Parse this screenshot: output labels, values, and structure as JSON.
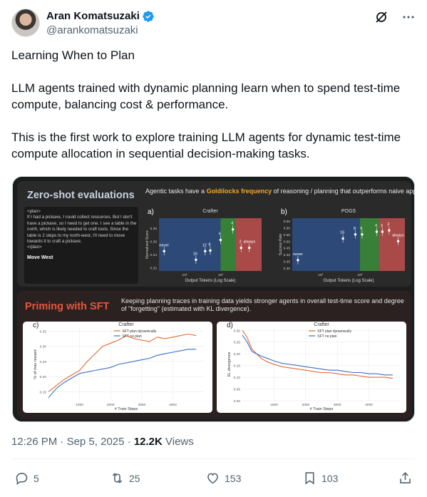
{
  "author": {
    "name": "Aran Komatsuzaki",
    "handle": "@arankomatsuzaki"
  },
  "tweet": {
    "paragraphs": [
      "Learning When to Plan",
      "LLM agents trained with dynamic planning learn when to spend test-time compute, balancing cost & performance.",
      "This is the first work to explore training LLM agents for dynamic test-time compute allocation in sequential decision-making tasks."
    ]
  },
  "figure": {
    "panel1": {
      "title": "Zero-shot evaluations",
      "desc_pre": "Agentic tasks have a ",
      "desc_highlight": "Goldilocks frequency",
      "desc_post": " of reasoning / planning that outperforms naive approaches, like always planning (i.e. ReAct) or never planning.",
      "plan_open": "<plan>",
      "plan_text": "If I had a pickaxe, I could collect resources. But I don't have a pickaxe, so I need to get one. I see a table in the north, which is likely needed to craft tools. Since the table is 2 steps to my north-west, I'll need to move towards it to craft a pickaxe.",
      "plan_close": "</plan>",
      "action": "Move West"
    },
    "panel2": {
      "title": "Priming with SFT",
      "desc": "Keeping planning traces in training data yields stronger agents in overall test-time score and degree of \"forgetting\" (estimated with KL divergence)."
    },
    "colors": {
      "gold": "#f5a623",
      "title_red": "#e8553a",
      "blue": "#3a6fc9",
      "orange": "#e46a2c",
      "green": "#3b8f3b",
      "red": "#c0504d"
    }
  },
  "chart_data": [
    {
      "id": "a",
      "type": "scatter",
      "title": "Crafter",
      "xlabel": "Output Tokens (Log Scale)",
      "ylabel": "Normalized Score",
      "x_tick_labels": [
        "10²",
        "10³"
      ],
      "y_tick_labels": [
        "0.32",
        "0.34",
        "0.36",
        "0.38"
      ],
      "ylim": [
        0.315,
        0.395
      ],
      "region_sizes": [
        0.6,
        0.15,
        0.25
      ],
      "points": [
        {
          "label": "never",
          "x": 0.05,
          "y": 0.345
        },
        {
          "label": "16",
          "x": 0.36,
          "y": 0.332
        },
        {
          "label": "12",
          "x": 0.45,
          "y": 0.345
        },
        {
          "label": "8",
          "x": 0.5,
          "y": 0.346
        },
        {
          "label": "6",
          "x": 0.6,
          "y": 0.362
        },
        {
          "label": "4",
          "x": 0.72,
          "y": 0.378
        },
        {
          "label": "2",
          "x": 0.8,
          "y": 0.35
        },
        {
          "label": "always",
          "x": 0.88,
          "y": 0.35
        }
      ]
    },
    {
      "id": "b",
      "type": "scatter",
      "title": "POGS",
      "xlabel": "Output Tokens (Log Scale)",
      "ylabel": "Success Rate",
      "x_tick_labels": [
        "10²",
        "10³"
      ],
      "y_tick_labels": [
        "0.30",
        "0.35",
        "0.40",
        "0.45",
        "0.50",
        "0.55",
        "0.60",
        "0.65"
      ],
      "ylim": [
        0.28,
        0.67
      ],
      "region_sizes": [
        0.6,
        0.17,
        0.23
      ],
      "points": [
        {
          "label": "never",
          "x": 0.05,
          "y": 0.36
        },
        {
          "label": "16",
          "x": 0.45,
          "y": 0.52
        },
        {
          "label": "8",
          "x": 0.56,
          "y": 0.55
        },
        {
          "label": "6",
          "x": 0.62,
          "y": 0.55
        },
        {
          "label": "4",
          "x": 0.75,
          "y": 0.57
        },
        {
          "label": "3",
          "x": 0.8,
          "y": 0.57
        },
        {
          "label": "2",
          "x": 0.86,
          "y": 0.58
        },
        {
          "label": "always",
          "x": 0.94,
          "y": 0.5
        }
      ]
    },
    {
      "id": "c",
      "type": "line",
      "title": "Crafter",
      "xlabel": "# Train Steps",
      "ylabel": "% of max reward",
      "x_ticks": [
        1000,
        2000,
        3000,
        4000
      ],
      "xlim": [
        0,
        5000
      ],
      "y_ticks": [
        0.15,
        0.2,
        0.25,
        0.3,
        0.35
      ],
      "ylim": [
        0.12,
        0.36
      ],
      "series": [
        {
          "name": "SFT plan dynamically",
          "color": "#e46a2c",
          "x": [
            0,
            250,
            500,
            750,
            1000,
            1250,
            1500,
            1750,
            2000,
            2250,
            2500,
            2750,
            3000,
            3250,
            3500,
            3750,
            4000,
            4250,
            4500,
            4750
          ],
          "y": [
            0.15,
            0.17,
            0.19,
            0.205,
            0.22,
            0.25,
            0.275,
            0.3,
            0.31,
            0.32,
            0.335,
            0.325,
            0.32,
            0.315,
            0.33,
            0.325,
            0.33,
            0.335,
            0.34,
            0.335
          ]
        },
        {
          "name": "SFT no plan",
          "color": "#3a6fc9",
          "x": [
            0,
            250,
            500,
            750,
            1000,
            1250,
            1500,
            1750,
            2000,
            2250,
            2500,
            2750,
            3000,
            3250,
            3500,
            3750,
            4000,
            4250,
            4500,
            4750
          ],
          "y": [
            0.13,
            0.16,
            0.18,
            0.195,
            0.21,
            0.215,
            0.22,
            0.225,
            0.23,
            0.24,
            0.245,
            0.25,
            0.255,
            0.26,
            0.27,
            0.275,
            0.28,
            0.285,
            0.29,
            0.29
          ]
        }
      ]
    },
    {
      "id": "d",
      "type": "line",
      "title": "Crafter",
      "xlabel": "# Train Steps",
      "ylabel": "KL divergence",
      "x_ticks": [
        1000,
        2000,
        3000,
        4000
      ],
      "xlim": [
        0,
        5000
      ],
      "y_ticks": [
        0.0,
        0.05,
        0.1,
        0.15,
        0.2,
        0.25,
        0.3
      ],
      "ylim": [
        0.0,
        0.31
      ],
      "series": [
        {
          "name": "SFT plan dynamically",
          "color": "#e46a2c",
          "x": [
            0,
            150,
            300,
            450,
            600,
            800,
            1000,
            1250,
            1500,
            1750,
            2000,
            2250,
            2500,
            2750,
            3000,
            3250,
            3500,
            3750,
            4000,
            4250,
            4500,
            4750
          ],
          "y": [
            0.3,
            0.27,
            0.22,
            0.2,
            0.18,
            0.165,
            0.155,
            0.145,
            0.14,
            0.135,
            0.13,
            0.125,
            0.12,
            0.12,
            0.115,
            0.11,
            0.11,
            0.105,
            0.1,
            0.1,
            0.1,
            0.095
          ]
        },
        {
          "name": "SFT no plan",
          "color": "#3a6fc9",
          "x": [
            0,
            150,
            300,
            450,
            600,
            800,
            1000,
            1250,
            1500,
            1750,
            2000,
            2250,
            2500,
            2750,
            3000,
            3250,
            3500,
            3750,
            4000,
            4250,
            4500,
            4750
          ],
          "y": [
            0.28,
            0.25,
            0.21,
            0.2,
            0.19,
            0.18,
            0.17,
            0.16,
            0.155,
            0.15,
            0.145,
            0.14,
            0.135,
            0.13,
            0.13,
            0.125,
            0.12,
            0.12,
            0.115,
            0.115,
            0.11,
            0.11
          ]
        }
      ]
    }
  ],
  "meta": {
    "time": "12:26 PM",
    "sep": "·",
    "date": "Sep 5, 2025",
    "views_count": "12.2K",
    "views_label": "Views"
  },
  "actions": {
    "replies": "5",
    "retweets": "25",
    "likes": "153",
    "bookmarks": "103"
  }
}
